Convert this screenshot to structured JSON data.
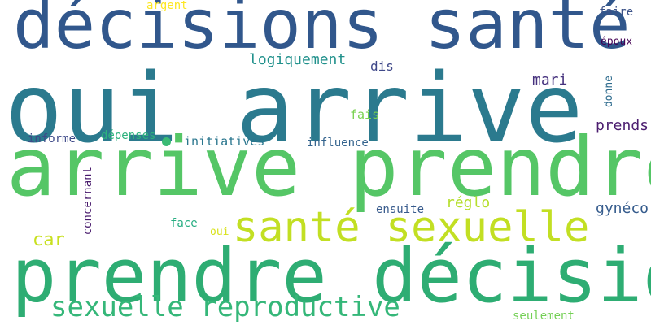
{
  "words": {
    "decisions_sante": "décisions santé",
    "oui_arrive": "oui arrive",
    "arrive_prendre": "arrive prendre",
    "prendre_decisions": "prendre décisions",
    "sante_sexuelle": "santé sexuelle",
    "sexuelle_reproductive": "sexuelle reproductive",
    "logiquement": "logiquement",
    "argent": "argent",
    "faire": "faire",
    "epoux": "époux",
    "dis": "dis",
    "mari": "mari",
    "donne": "donne",
    "fais": "fais",
    "prends": "prends",
    "depenses": "dépenses",
    "informe": "informe",
    "initiatives": "initiatives",
    "influence": "influence",
    "concernant": "concernant",
    "reglo": "réglo",
    "gyneco": "gynéco",
    "ensuite": "ensuite",
    "face": "face",
    "oui": "oui",
    "car": "car",
    "seulement": "seulement"
  },
  "colors": {
    "decisions_sante": "#31578c",
    "oui_arrive": "#2b7a8e",
    "arrive_prendre": "#55c666",
    "prendre_decisions": "#2ead73",
    "sante_sexuelle": "#c2df23",
    "sexuelle_reproductive": "#35b779",
    "logiquement": "#21918c",
    "argent": "#fde725",
    "faire": "#3b5288",
    "epoux": "#440154",
    "dis": "#3f4889",
    "mari": "#46327e",
    "donne": "#2f6c8e",
    "fais": "#7ad151",
    "prends": "#4b1d6f",
    "depenses": "#2db27d",
    "informe": "#3e4a89",
    "initiatives": "#2a768e",
    "influence": "#33638d",
    "concernant": "#481a6c",
    "reglo": "#b5de2b",
    "gyneco": "#365c8d",
    "ensuite": "#375a8c",
    "face": "#26ad81",
    "oui": "#d8e219",
    "car": "#c8e020",
    "seulement": "#74d055",
    "dot": "#3bbb75"
  }
}
